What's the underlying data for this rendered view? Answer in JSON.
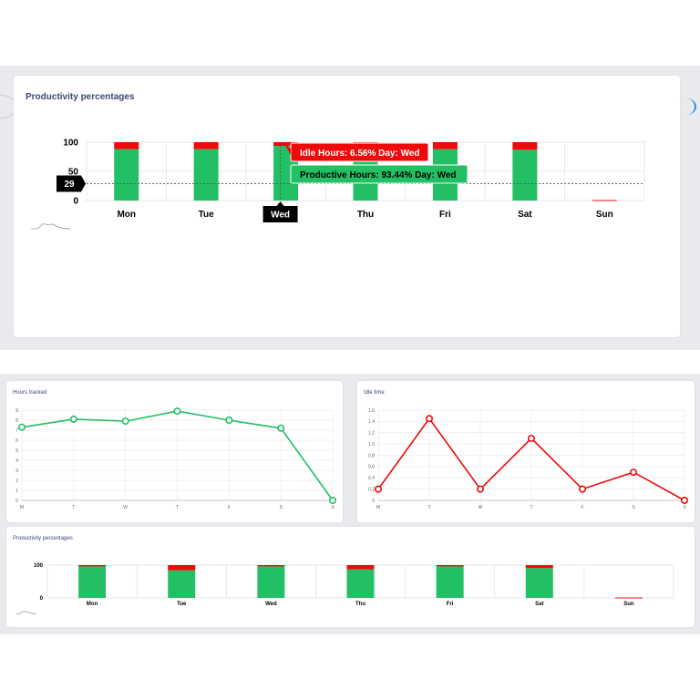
{
  "colors": {
    "productive": "#22bf65",
    "idle": "#ee0a0a",
    "title": "#3b4a73",
    "grid": "#e4e4e4",
    "tooltip_dark": "#000000"
  },
  "icons": [
    "chart-thumbnail-icon"
  ],
  "top_panel": {
    "title": "Productivity percentages",
    "chart_data": {
      "type": "bar",
      "stacked": true,
      "categories": [
        "Mon",
        "Tue",
        "Wed",
        "Thu",
        "Fri",
        "Sat",
        "Sun"
      ],
      "series": [
        {
          "name": "Productive Hours",
          "values": [
            88,
            88,
            93.44,
            88,
            88,
            87,
            0
          ]
        },
        {
          "name": "Idle Hours",
          "values": [
            12,
            12,
            6.56,
            12,
            12,
            13,
            1
          ]
        }
      ],
      "yticks": [
        "100",
        "50",
        "0"
      ],
      "ylim": [
        0,
        100
      ],
      "crosshair_value": "29",
      "crosshair_label": "Wed",
      "tooltips": {
        "idle": "Idle Hours: 6.56% Day: Wed",
        "productive": "Productive Hours: 93.44% Day: Wed"
      }
    }
  },
  "hours_panel": {
    "title": "Hours tracked",
    "chart_data": {
      "type": "line",
      "categories": [
        "M",
        "T",
        "W",
        "T",
        "F",
        "S",
        "S"
      ],
      "values": [
        7.3,
        8.1,
        7.9,
        8.9,
        8.0,
        7.2,
        0
      ],
      "yticks": [
        "9",
        "8",
        "7",
        "6",
        "5",
        "4",
        "3",
        "2",
        "1",
        "0"
      ],
      "ylim": [
        0,
        9
      ]
    }
  },
  "idle_panel": {
    "title": "Idle time",
    "chart_data": {
      "type": "line",
      "categories": [
        "M",
        "T",
        "W",
        "T",
        "F",
        "S",
        "S"
      ],
      "values": [
        0.2,
        1.45,
        0.2,
        1.1,
        0.2,
        0.5,
        0
      ],
      "yticks": [
        "1.6",
        "1.4",
        "1.2",
        "1.0",
        "0.8",
        "0.6",
        "0.4",
        "0.2",
        "0"
      ],
      "ylim": [
        0,
        1.6
      ]
    }
  },
  "bottom_panel": {
    "title": "Productivity percentages",
    "chart_data": {
      "type": "bar",
      "stacked": true,
      "categories": [
        "Mon",
        "Tue",
        "Wed",
        "Thu",
        "Fri",
        "Sat",
        "Sun"
      ],
      "series": [
        {
          "name": "Productive Hours",
          "values": [
            96,
            84,
            96,
            87,
            96,
            91,
            0
          ]
        },
        {
          "name": "Idle Hours",
          "values": [
            4,
            16,
            4,
            13,
            4,
            9,
            1
          ]
        }
      ],
      "yticks": [
        "100",
        "0"
      ],
      "ylim": [
        0,
        100
      ]
    }
  }
}
